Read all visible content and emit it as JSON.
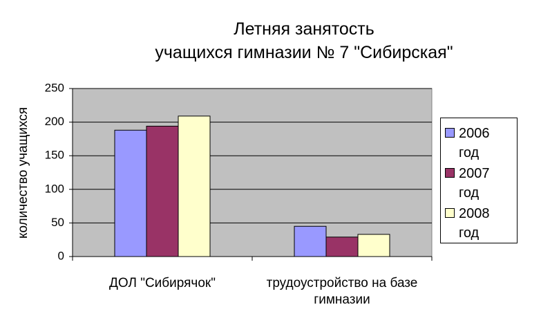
{
  "chart_data": {
    "type": "bar",
    "title": [
      "Летняя занятость",
      "учащихся гимназии № 7 \"Сибирская\""
    ],
    "y_label": "количество учащихся",
    "categories": [
      "ДОЛ \"Сибирячок\"",
      "трудоустройство на базе гимназии"
    ],
    "series": [
      {
        "name": "2006 год",
        "color": "#9999ff",
        "values": [
          188,
          45
        ]
      },
      {
        "name": "2007 год",
        "color": "#993366",
        "values": [
          194,
          29
        ]
      },
      {
        "name": "2008 год",
        "color": "#ffffcc",
        "values": [
          209,
          33
        ]
      }
    ],
    "ylim": [
      0,
      250
    ],
    "yticks": [
      0,
      50,
      100,
      150,
      200,
      250
    ],
    "grid": true,
    "legend": "right"
  }
}
